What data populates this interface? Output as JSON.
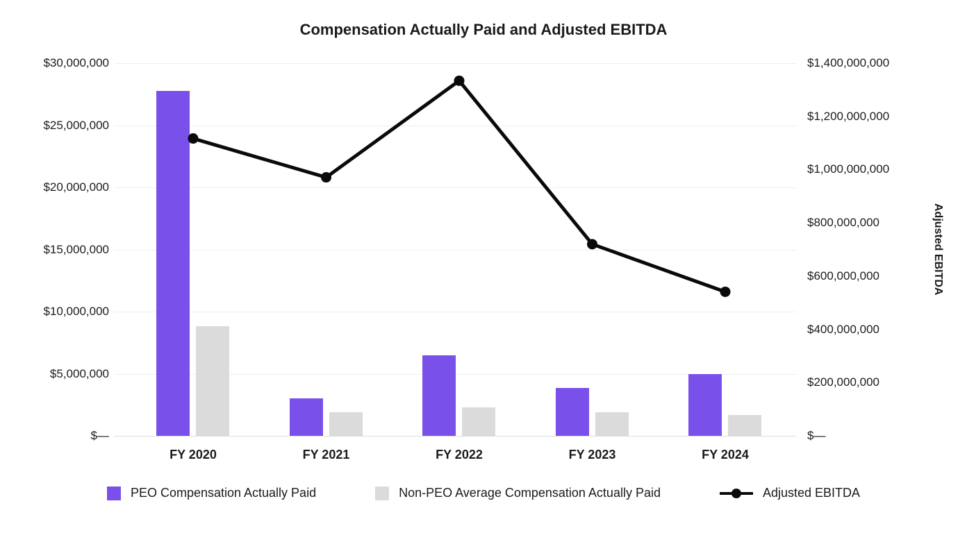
{
  "title": "Compensation Actually Paid and Adjusted EBITDA",
  "chart_data": {
    "type": "bar",
    "subtype": "grouped-bar-with-line-combo",
    "categories": [
      "FY 2020",
      "FY 2021",
      "FY 2022",
      "FY 2023",
      "FY 2024"
    ],
    "series": [
      {
        "name": "PEO Compensation Actually Paid",
        "type": "bar",
        "axis": "left",
        "color": "#7a50eb",
        "values": [
          27750000,
          3000000,
          6500000,
          3850000,
          4950000
        ]
      },
      {
        "name": "Non-PEO Average Compensation Actually Paid",
        "type": "bar",
        "axis": "left",
        "color": "#dbdbdb",
        "values": [
          8800000,
          1900000,
          2300000,
          1900000,
          1650000
        ]
      },
      {
        "name": "Adjusted EBITDA",
        "type": "line",
        "axis": "right",
        "color": "#0a0a0a",
        "values": [
          1117000000,
          971000000,
          1334000000,
          720000000,
          541000000
        ]
      }
    ],
    "left_axis": {
      "min": 0,
      "max": 30000000,
      "tick_labels": [
        "$30,000,000",
        "$25,000,000",
        "$20,000,000",
        "$15,000,000",
        "$10,000,000",
        "$5,000,000",
        "$—"
      ]
    },
    "right_axis": {
      "title": "Adjusted EBITDA",
      "min": 0,
      "max": 1400000000,
      "tick_labels": [
        "$1,400,000,000",
        "$1,200,000,000",
        "$1,000,000,000",
        "$800,000,000",
        "$600,000,000",
        "$400,000,000",
        "$200,000,000",
        "$—"
      ]
    },
    "grid": true,
    "legend_position": "bottom",
    "background": "#ffffff"
  }
}
